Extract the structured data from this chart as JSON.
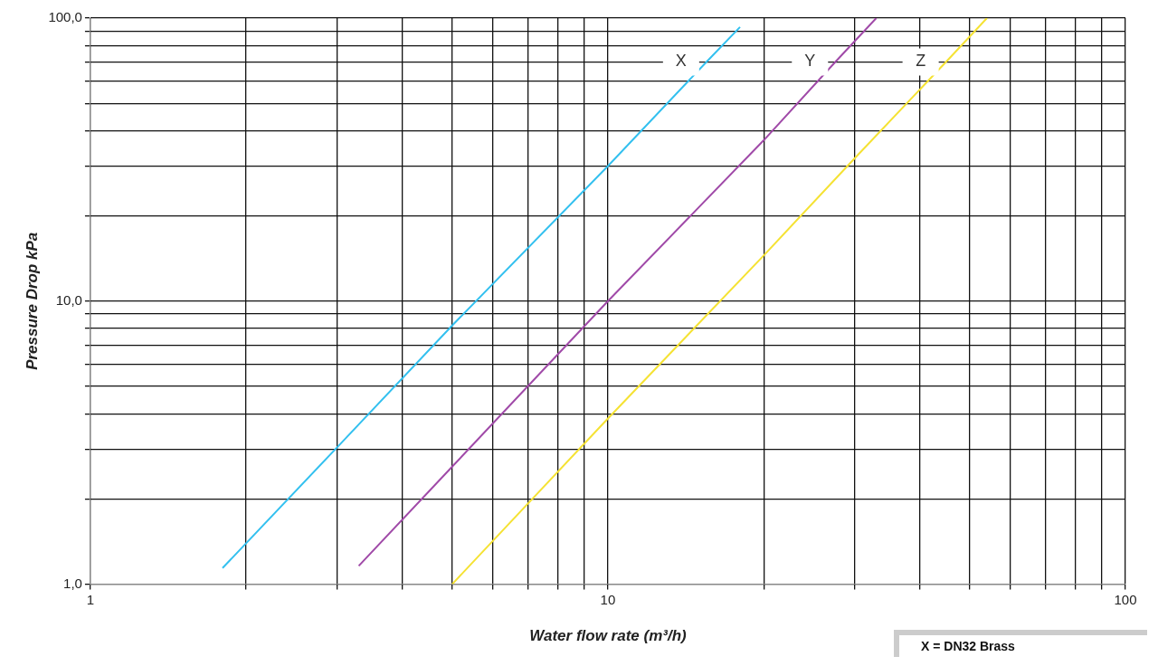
{
  "chart_data": {
    "type": "line",
    "xlabel": "Water flow rate (m³/h)",
    "ylabel": "Pressure Drop kPa",
    "log": "xy",
    "grid": true,
    "legend": false,
    "marker": "none",
    "line_style": "solid",
    "xlim": [
      1,
      100
    ],
    "ylim": [
      1,
      100
    ],
    "xticks": [
      1,
      {
        "value": 2,
        "label": null
      },
      {
        "value": 3,
        "label": null
      },
      {
        "value": 4,
        "label": null
      },
      {
        "value": 5,
        "label": null
      },
      {
        "value": 6,
        "label": null
      },
      {
        "value": 7,
        "label": null
      },
      {
        "value": 8,
        "label": null
      },
      {
        "value": 9,
        "label": null
      },
      10,
      {
        "value": 20,
        "label": null
      },
      {
        "value": 30,
        "label": null
      },
      {
        "value": 40,
        "label": null
      },
      {
        "value": 50,
        "label": null
      },
      {
        "value": 60,
        "label": null
      },
      {
        "value": 70,
        "label": null
      },
      {
        "value": 80,
        "label": null
      },
      {
        "value": 90,
        "label": null
      },
      100
    ],
    "yticks": [
      {
        "value": 1,
        "label": "1,0"
      },
      {
        "value": 2,
        "label": null
      },
      {
        "value": 3,
        "label": null
      },
      {
        "value": 4,
        "label": null
      },
      {
        "value": 5,
        "label": null
      },
      {
        "value": 6,
        "label": null
      },
      {
        "value": 7,
        "label": null
      },
      {
        "value": 8,
        "label": null
      },
      {
        "value": 9,
        "label": null
      },
      {
        "value": 10,
        "label": "10,0"
      },
      {
        "value": 20,
        "label": null
      },
      {
        "value": 30,
        "label": null
      },
      {
        "value": 40,
        "label": null
      },
      {
        "value": 50,
        "label": null
      },
      {
        "value": 60,
        "label": null
      },
      {
        "value": 70,
        "label": null
      },
      {
        "value": 80,
        "label": null
      },
      {
        "value": 90,
        "label": null
      },
      {
        "value": 100,
        "label": "100,0"
      }
    ],
    "series": [
      {
        "name": "X",
        "color": "#33c0ef",
        "x": [
          1.8,
          3,
          5,
          10,
          15.5,
          18
        ],
        "values": [
          1.14,
          3.05,
          8.2,
          30,
          70,
          93
        ]
      },
      {
        "name": "Y",
        "color": "#a04aa8",
        "x": [
          3.3,
          5,
          10,
          20,
          27.5,
          33
        ],
        "values": [
          1.16,
          2.6,
          10,
          37,
          70,
          100
        ]
      },
      {
        "name": "Z",
        "color": "#f5e233",
        "x": [
          5,
          10,
          20,
          30,
          45,
          54
        ],
        "values": [
          1.0,
          3.85,
          14.5,
          32,
          70,
          100
        ]
      }
    ],
    "annotations": [
      "X = DN32 Brass"
    ]
  }
}
